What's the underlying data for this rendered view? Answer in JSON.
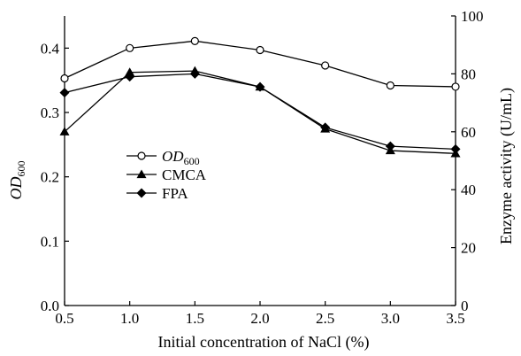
{
  "chart_data": {
    "type": "line",
    "x": [
      0.5,
      1.0,
      1.5,
      2.0,
      2.5,
      3.0,
      3.5
    ],
    "xlabel": "Initial concentration of NaCl (%)",
    "xticks": [
      "0.5",
      "1.0",
      "1.5",
      "2.0",
      "2.5",
      "3.0",
      "3.5"
    ],
    "xlim": [
      0.5,
      3.5
    ],
    "y_left": {
      "label_main": "OD",
      "label_sub": "600",
      "ylim": [
        0.0,
        0.45
      ],
      "ticks": [
        "0.0",
        "0.1",
        "0.2",
        "0.3",
        "0.4"
      ]
    },
    "y_right": {
      "label": "Enzyme activity (U/mL)",
      "ylim": [
        0,
        100
      ],
      "ticks": [
        "0",
        "20",
        "40",
        "60",
        "80",
        "100"
      ]
    },
    "series": [
      {
        "name_main": "OD",
        "name_sub": "600",
        "axis": "left",
        "marker": "open-circle",
        "values": [
          0.353,
          0.4,
          0.411,
          0.397,
          0.373,
          0.342,
          0.34
        ]
      },
      {
        "name": "CMCA",
        "axis": "right",
        "marker": "filled-triangle",
        "values": [
          60,
          80.5,
          81,
          75.5,
          61,
          53.5,
          52.5
        ]
      },
      {
        "name": "FPA",
        "axis": "right",
        "marker": "filled-diamond",
        "values": [
          73.5,
          79,
          80,
          75.5,
          61.5,
          55,
          54
        ]
      }
    ],
    "legend_position": "center-left",
    "grid": false
  }
}
